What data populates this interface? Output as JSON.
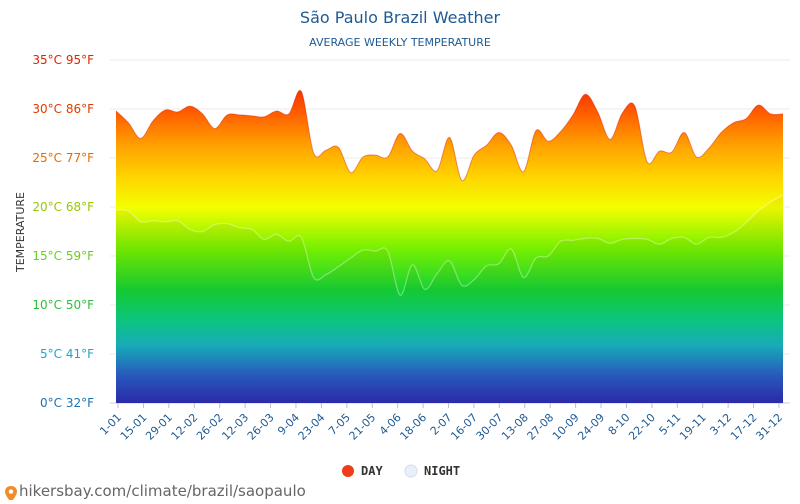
{
  "chart_data": {
    "type": "area",
    "title": "São Paulo Brazil Weather",
    "subtitle": "AVERAGE WEEKLY TEMPERATURE",
    "ylabel": "TEMPERATURE",
    "ylim": [
      0,
      35
    ],
    "y_ticks": [
      {
        "value": 0,
        "label": "0°C 32°F",
        "color": "#1a73b6"
      },
      {
        "value": 5,
        "label": "5°C 41°F",
        "color": "#1fa5c4"
      },
      {
        "value": 10,
        "label": "10°C 50°F",
        "color": "#2cbf3a"
      },
      {
        "value": 15,
        "label": "15°C 59°F",
        "color": "#6bcf1a"
      },
      {
        "value": 20,
        "label": "20°C 68°F",
        "color": "#9bc800"
      },
      {
        "value": 25,
        "label": "25°C 77°F",
        "color": "#e66a00"
      },
      {
        "value": 30,
        "label": "30°C 86°F",
        "color": "#e23b00"
      },
      {
        "value": 35,
        "label": "35°C 95°F",
        "color": "#e02200"
      }
    ],
    "x_tick_labels": [
      "1-01",
      "15-01",
      "29-01",
      "12-02",
      "26-02",
      "12-03",
      "26-03",
      "9-04",
      "23-04",
      "7-05",
      "21-05",
      "4-06",
      "18-06",
      "2-07",
      "16-07",
      "30-07",
      "13-08",
      "27-08",
      "10-09",
      "24-09",
      "8-10",
      "22-10",
      "5-11",
      "19-11",
      "3-12",
      "17-12",
      "31-12"
    ],
    "grid": true,
    "legend_position": "bottom",
    "series": [
      {
        "name": "DAY",
        "color": "#ef3b1a",
        "values": [
          29.8,
          28.6,
          27.0,
          28.8,
          29.9,
          29.7,
          30.3,
          29.5,
          28.0,
          29.4,
          29.4,
          29.3,
          29.2,
          29.8,
          29.5,
          31.8,
          25.5,
          25.8,
          26.1,
          23.5,
          25.1,
          25.3,
          25.1,
          27.5,
          25.7,
          24.9,
          23.7,
          27.1,
          22.7,
          25.3,
          26.3,
          27.6,
          26.3,
          23.6,
          27.8,
          26.7,
          27.7,
          29.4,
          31.5,
          29.7,
          26.9,
          29.6,
          30.3,
          24.6,
          25.7,
          25.6,
          27.6,
          25.1,
          26.0,
          27.6,
          28.6,
          29.0,
          30.4,
          29.5,
          29.5
        ]
      },
      {
        "name": "NIGHT",
        "color": "#e8f1fb",
        "values": [
          19.7,
          19.6,
          18.5,
          18.6,
          18.5,
          18.6,
          17.7,
          17.5,
          18.2,
          18.3,
          17.9,
          17.7,
          16.7,
          17.2,
          16.5,
          16.9,
          12.8,
          13.1,
          13.9,
          14.8,
          15.6,
          15.5,
          15.5,
          11.0,
          14.1,
          11.6,
          13.2,
          14.5,
          12.0,
          12.6,
          14.0,
          14.2,
          15.7,
          12.8,
          14.8,
          15.0,
          16.5,
          16.6,
          16.8,
          16.8,
          16.3,
          16.7,
          16.8,
          16.7,
          16.2,
          16.8,
          16.9,
          16.2,
          16.9,
          16.9,
          17.4,
          18.4,
          19.6,
          20.5,
          21.2
        ]
      }
    ]
  },
  "source_text": "hikersbay.com/climate/brazil/saopaulo"
}
